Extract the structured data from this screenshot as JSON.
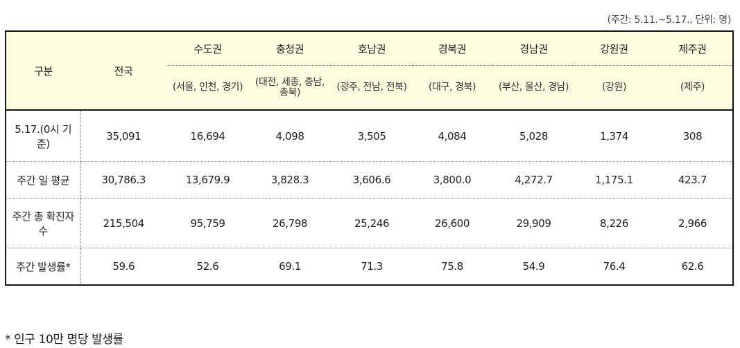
{
  "note": "(주간: 5.11.~5.17., 단위: 명)",
  "header": {
    "category": "구분",
    "national": "전국",
    "regions": [
      {
        "name": "수도권",
        "sub": "(서울, 인천, 경기)"
      },
      {
        "name": "충청권",
        "sub": "(대전, 세종, 충남, 충북)"
      },
      {
        "name": "호남권",
        "sub": "(광주, 전남, 전북)"
      },
      {
        "name": "경북권",
        "sub": "(대구, 경북)"
      },
      {
        "name": "경남권",
        "sub": "(부산, 울산, 경남)"
      },
      {
        "name": "강원권",
        "sub": "(강원)"
      },
      {
        "name": "제주권",
        "sub": "(제주)"
      }
    ]
  },
  "rows": [
    {
      "label": "5.17.(0시 기준)",
      "values": [
        "35,091",
        "16,694",
        "4,098",
        "3,505",
        "4,084",
        "5,028",
        "1,374",
        "308"
      ]
    },
    {
      "label": "주간 일 평균",
      "values": [
        "30,786.3",
        "13,679.9",
        "3,828.3",
        "3,606.6",
        "3,800.0",
        "4,272.7",
        "1,175.1",
        "423.7"
      ]
    },
    {
      "label": "주간 총 확진자수",
      "values": [
        "215,504",
        "95,759",
        "26,798",
        "25,246",
        "26,600",
        "29,909",
        "8,226",
        "2,966"
      ]
    },
    {
      "label": "주간 발생률*",
      "values": [
        "59.6",
        "52.6",
        "69.1",
        "71.3",
        "75.8",
        "54.9",
        "76.4",
        "62.6"
      ]
    }
  ],
  "footnote": "* 인구 10만 명당 발생률"
}
